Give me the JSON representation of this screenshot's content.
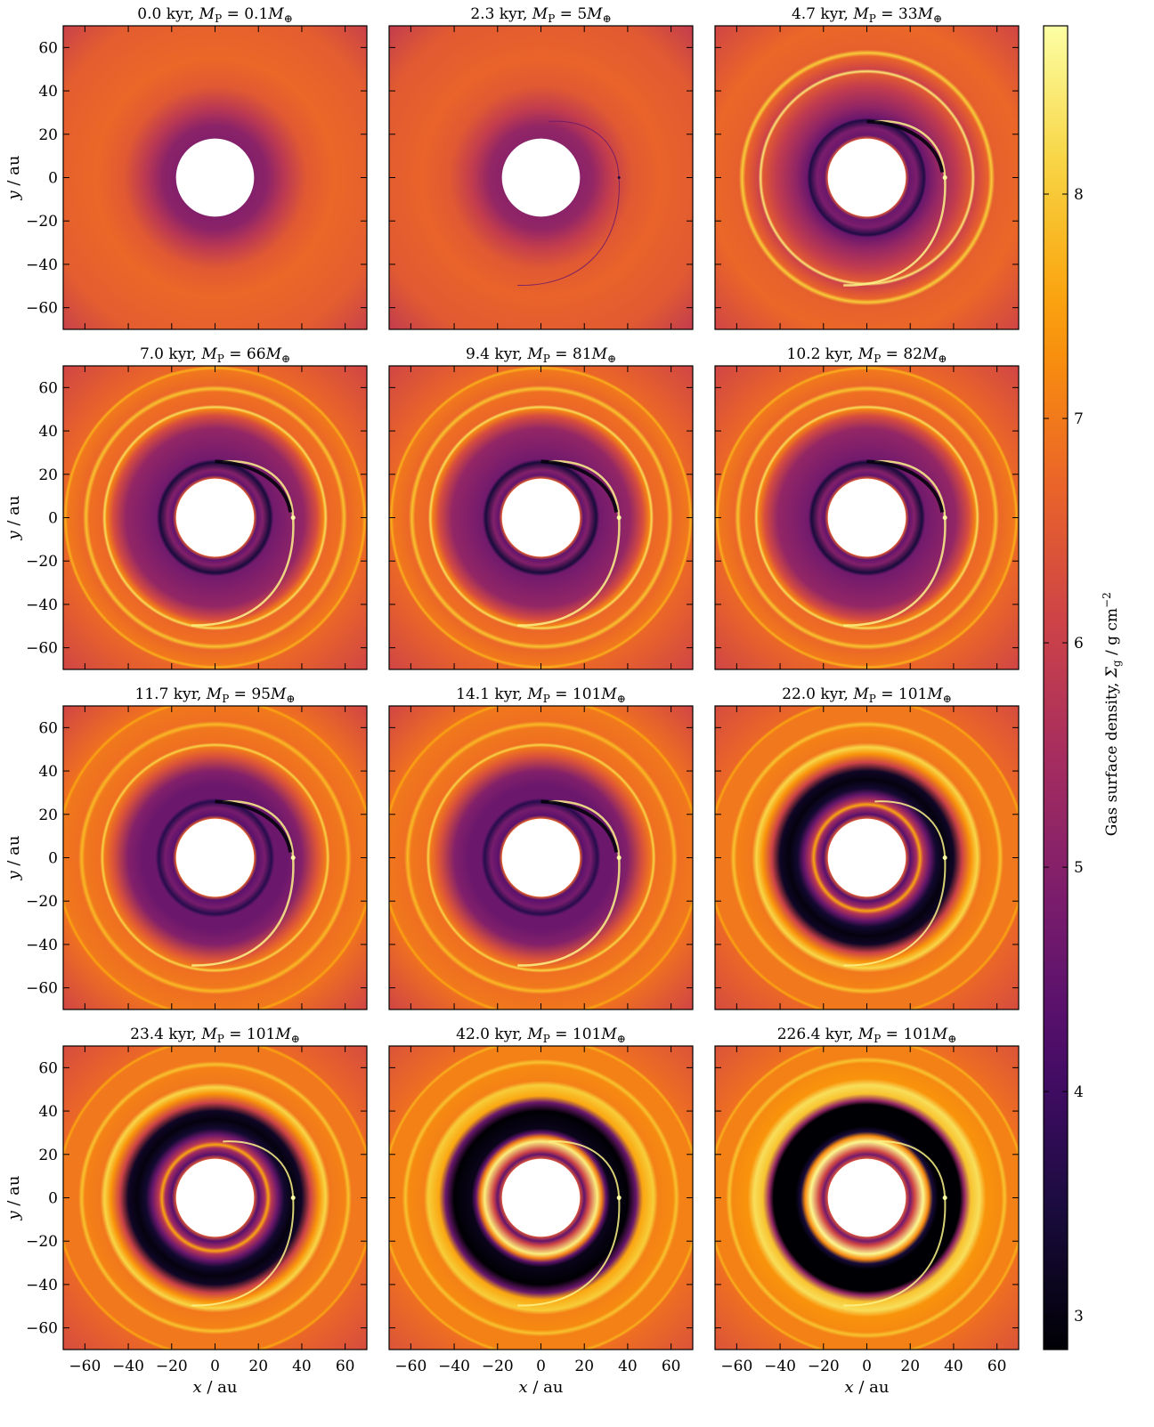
{
  "chart_data": {
    "type": "heatmap",
    "description_colormap": "inferno",
    "colors": {
      "cmap": [
        "#000004",
        "#1b0c41",
        "#4a0c6b",
        "#781c6d",
        "#a52c60",
        "#cf4446",
        "#ed6925",
        "#fb9b06",
        "#f7d13d",
        "#fcffa4"
      ],
      "inner_hole": "#ffffff"
    },
    "xlabel_var": "x",
    "xlabel_unit": " / au",
    "ylabel_var": "y",
    "ylabel_unit": " / au",
    "xlim": [
      -70,
      70
    ],
    "ylim": [
      -70,
      70
    ],
    "xticks": [
      "−60",
      "−40",
      "−20",
      "0",
      "20",
      "40",
      "60"
    ],
    "yticks": [
      "60",
      "40",
      "20",
      "0",
      "−20",
      "−40",
      "−60"
    ],
    "tick_values": [
      -60,
      -40,
      -20,
      0,
      20,
      40,
      60
    ],
    "colorbar": {
      "label_main": "Gas surface density, ",
      "label_sym": "Σ",
      "label_sub": "g",
      "label_unit": " / g cm",
      "label_sup": "−2",
      "range": [
        2.85,
        8.75
      ],
      "ticks": [
        "8",
        "7",
        "6",
        "5",
        "4",
        "3"
      ],
      "tick_values": [
        8,
        7,
        6,
        5,
        4,
        3
      ]
    },
    "planet_radius_au": 36,
    "inner_hole_radius_au": 18,
    "panels": [
      {
        "time": "0.0 kyr, ",
        "mass": "0.1",
        "stage": 0
      },
      {
        "time": "2.3 kyr, ",
        "mass": "5",
        "stage": 1
      },
      {
        "time": "4.7 kyr, ",
        "mass": "33",
        "stage": 2
      },
      {
        "time": "7.0 kyr, ",
        "mass": "66",
        "stage": 3
      },
      {
        "time": "9.4 kyr, ",
        "mass": "81",
        "stage": 3
      },
      {
        "time": "10.2 kyr, ",
        "mass": "82",
        "stage": 3
      },
      {
        "time": "11.7 kyr, ",
        "mass": "95",
        "stage": 4
      },
      {
        "time": "14.1 kyr, ",
        "mass": "101",
        "stage": 4
      },
      {
        "time": "22.0 kyr, ",
        "mass": "101",
        "stage": 5
      },
      {
        "time": "23.4 kyr, ",
        "mass": "101",
        "stage": 5
      },
      {
        "time": "42.0 kyr, ",
        "mass": "101",
        "stage": 6
      },
      {
        "time": "226.4 kyr, ",
        "mass": "101",
        "stage": 7
      }
    ],
    "title_mass_symbol": "M",
    "title_mass_sub": "P",
    "title_equals": " = ",
    "title_earth": "M",
    "title_earth_sub": "⊕"
  }
}
